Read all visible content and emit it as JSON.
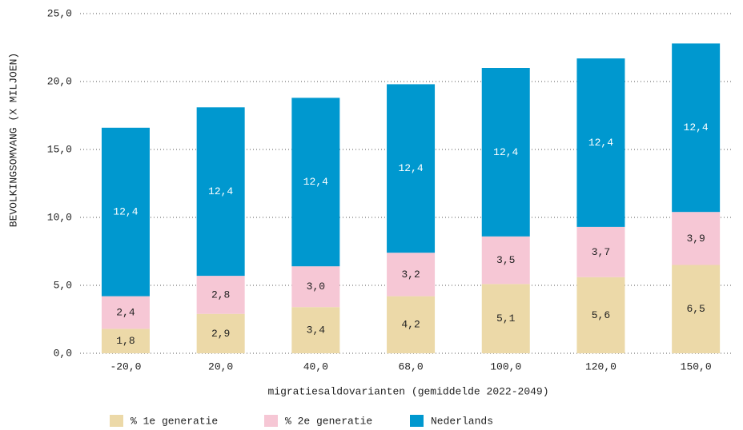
{
  "chart_data": {
    "type": "stacked_bar",
    "y_label": "BEVOLKINGSOMVANG (X MILJOEN)",
    "x_label": "migratiesaldovarianten (gemiddelde 2022-2049)",
    "categories": [
      "-20,0",
      "20,0",
      "40,0",
      "68,0",
      "100,0",
      "120,0",
      "150,0"
    ],
    "series": [
      {
        "name": "% 1e generatie",
        "color": "#ecd9a8",
        "label_color": "#222222",
        "values": [
          1.8,
          2.9,
          3.4,
          4.2,
          5.1,
          5.6,
          6.5
        ],
        "value_labels": [
          "1,8",
          "2,9",
          "3,4",
          "4,2",
          "5,1",
          "5,6",
          "6,5"
        ]
      },
      {
        "name": "% 2e generatie",
        "color": "#f6c7d5",
        "label_color": "#222222",
        "values": [
          2.4,
          2.8,
          3.0,
          3.2,
          3.5,
          3.7,
          3.9
        ],
        "value_labels": [
          "2,4",
          "2,8",
          "3,0",
          "3,2",
          "3,5",
          "3,7",
          "3,9"
        ]
      },
      {
        "name": "Nederlands",
        "color": "#0098cf",
        "label_color": "#ffffff",
        "values": [
          12.4,
          12.4,
          12.4,
          12.4,
          12.4,
          12.4,
          12.4
        ],
        "value_labels": [
          "12,4",
          "12,4",
          "12,4",
          "12,4",
          "12,4",
          "12,4",
          "12,4"
        ]
      }
    ],
    "ylim": [
      0,
      25
    ],
    "yticks": [
      {
        "value": 0,
        "label": "0,0"
      },
      {
        "value": 5,
        "label": "5,0"
      },
      {
        "value": 10,
        "label": "10,0"
      },
      {
        "value": 15,
        "label": "15,0"
      },
      {
        "value": 20,
        "label": "20,0"
      },
      {
        "value": 25,
        "label": "25,0"
      }
    ],
    "grid": true,
    "legend": "bottom"
  }
}
